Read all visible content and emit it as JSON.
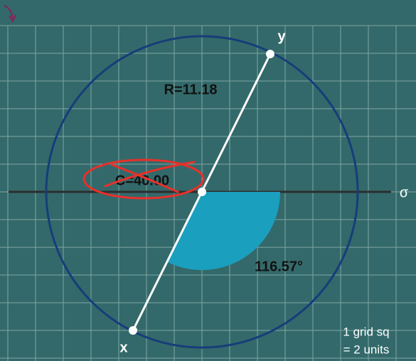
{
  "diagram": {
    "radius_label": "R=11.18",
    "center_label": "C=40.00",
    "angle_label": "116.57°",
    "point_y_label": "y",
    "point_x_label": "x",
    "axis_label": "σ",
    "scale_note": [
      "1 grid sq",
      "= 2 units"
    ]
  }
}
